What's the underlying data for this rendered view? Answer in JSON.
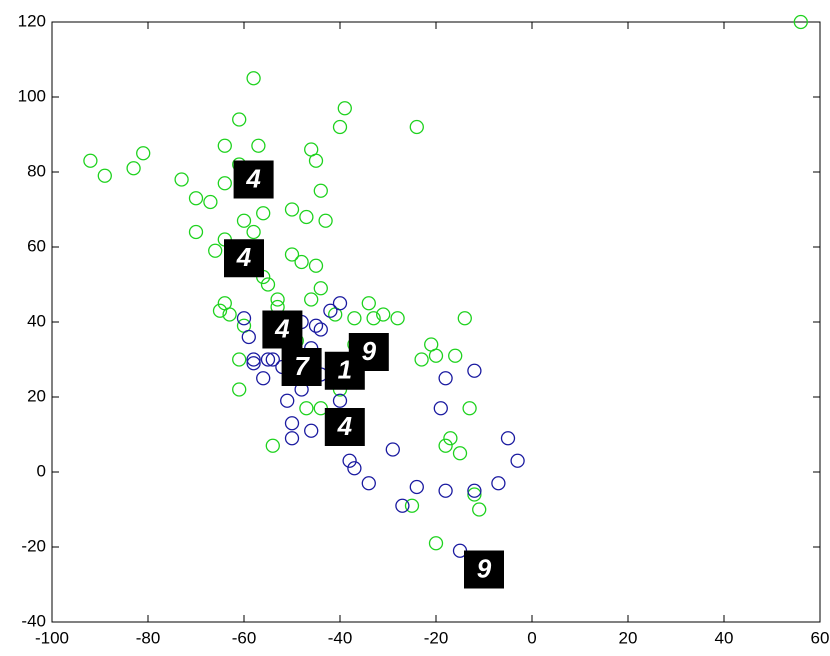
{
  "chart_data": {
    "type": "scatter",
    "xlim": [
      -100,
      60
    ],
    "xticks": [
      -100,
      -80,
      -60,
      -40,
      -20,
      0,
      20,
      40,
      60
    ],
    "ylim": [
      -40,
      120
    ],
    "yticks": [
      -40,
      -20,
      0,
      20,
      40,
      60,
      80,
      100,
      120
    ],
    "series": [
      {
        "color": "#1ed21e",
        "x": [
          -92,
          -89,
          -83,
          -81,
          -70,
          -73,
          -70,
          -67,
          -64,
          -61,
          -58,
          -57,
          -61,
          -64,
          -60,
          -58,
          -56,
          -64,
          -66,
          -58,
          -50,
          -47,
          -46,
          -45,
          -44,
          -43,
          -45,
          -50,
          -48,
          -39,
          -40,
          -24,
          56,
          -56,
          -55,
          -53,
          -53,
          -65,
          -63,
          -64,
          -60,
          -61,
          -61,
          -54,
          -46,
          -44,
          -41,
          -37,
          -34,
          -33,
          -31,
          -28,
          -23,
          -21,
          -20,
          -16,
          -14,
          -13,
          -17,
          -18,
          -15,
          -25,
          -20,
          -12,
          -11,
          -49,
          -48,
          -50,
          -47,
          -44,
          -40,
          -37
        ],
        "values": [
          83,
          79,
          81,
          85,
          73,
          78,
          64,
          72,
          87,
          94,
          105,
          87,
          82,
          77,
          67,
          64,
          69,
          62,
          59,
          58,
          70,
          68,
          86,
          83,
          75,
          67,
          55,
          58,
          56,
          97,
          92,
          92,
          120,
          52,
          50,
          46,
          44,
          43,
          42,
          45,
          39,
          30,
          22,
          7,
          46,
          49,
          42,
          41,
          45,
          41,
          42,
          41,
          30,
          34,
          31,
          31,
          41,
          17,
          9,
          7,
          5,
          -9,
          -19,
          -6,
          -10,
          35,
          31,
          25,
          17,
          17,
          22,
          34
        ]
      },
      {
        "color": "#1a1aa0",
        "x": [
          -60,
          -59,
          -58,
          -56,
          -55,
          -52,
          -48,
          -45,
          -44,
          -40,
          -42,
          -46,
          -44,
          -48,
          -50,
          -50,
          -46,
          -40,
          -38,
          -37,
          -34,
          -29,
          -27,
          -24,
          -18,
          -12,
          -12,
          -19,
          -18,
          -5,
          -3,
          -7,
          -15,
          -51,
          -54,
          -58
        ],
        "values": [
          41,
          36,
          30,
          25,
          30,
          28,
          40,
          39,
          38,
          45,
          43,
          33,
          26,
          22,
          13,
          9,
          11,
          19,
          3,
          1,
          -3,
          6,
          -9,
          -4,
          -5,
          27,
          -5,
          17,
          25,
          9,
          3,
          -3,
          -21,
          19,
          30,
          29
        ]
      }
    ],
    "annotations": [
      {
        "text": "4",
        "x": -58,
        "y": 78
      },
      {
        "text": "4",
        "x": -60,
        "y": 57
      },
      {
        "text": "4",
        "x": -52,
        "y": 38
      },
      {
        "text": "7",
        "x": -48,
        "y": 28
      },
      {
        "text": "1",
        "x": -39,
        "y": 27
      },
      {
        "text": "9",
        "x": -34,
        "y": 32
      },
      {
        "text": "4",
        "x": -39,
        "y": 12
      },
      {
        "text": "9",
        "x": -10,
        "y": -26
      }
    ]
  }
}
